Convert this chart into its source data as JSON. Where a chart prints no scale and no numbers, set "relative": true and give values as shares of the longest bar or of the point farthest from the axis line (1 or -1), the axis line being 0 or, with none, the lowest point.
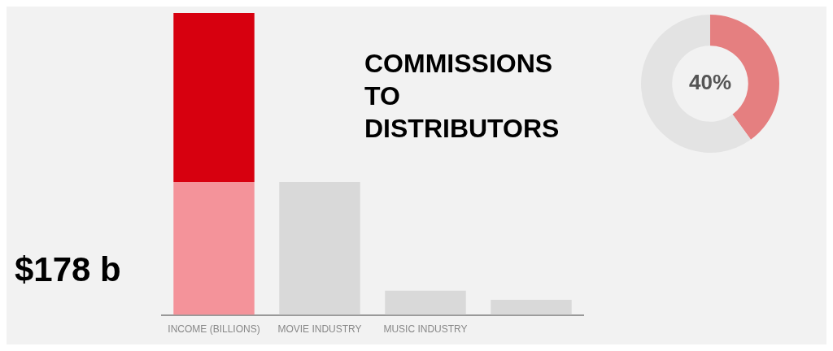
{
  "chart_data": [
    {
      "type": "bar",
      "title": "COMMISSIONS TO DISTRIBUTORS",
      "annotations": [
        "$178 b"
      ],
      "categories": [
        "INCOME (BILLIONS)",
        "MOVIE INDUSTRY",
        "MUSIC INDUSTRY",
        null
      ],
      "stacked": true,
      "relative": true,
      "legend": false,
      "grid": false,
      "series": [
        {
          "color": "#f4939a",
          "values": [
            0.44,
            null,
            null,
            null
          ]
        },
        {
          "color": "#d7000f",
          "values": [
            0.56,
            null,
            null,
            null
          ]
        },
        {
          "color": "#d9d9d9",
          "values": [
            null,
            0.44,
            0.08,
            0.05
          ]
        }
      ]
    },
    {
      "type": "donut",
      "categories": [
        null,
        null
      ],
      "values": [
        40,
        60
      ],
      "colors": [
        "#e57f80",
        "#e3e3e3"
      ],
      "value_labels": [
        "40%",
        null
      ],
      "legend": false
    }
  ]
}
